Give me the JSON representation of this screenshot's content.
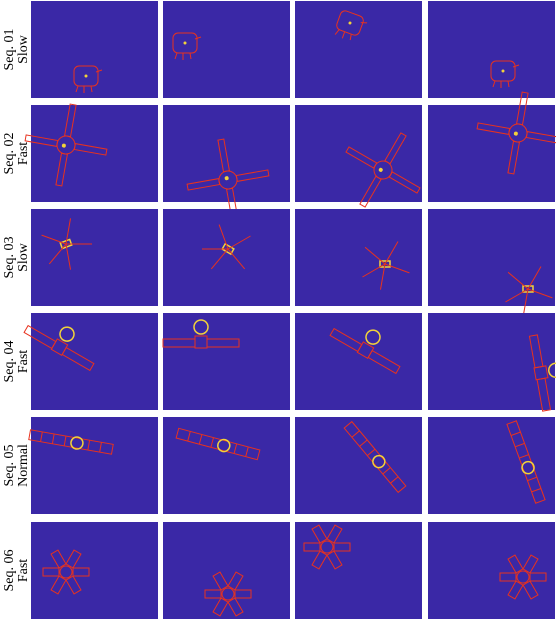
{
  "rows": [
    {
      "sequence": "Seq. 01",
      "speed": "Slow"
    },
    {
      "sequence": "Seq. 02",
      "speed": "Fast"
    },
    {
      "sequence": "Seq. 03",
      "speed": "Slow"
    },
    {
      "sequence": "Seq. 04",
      "speed": "Fast"
    },
    {
      "sequence": "Seq. 05",
      "speed": "Normal"
    },
    {
      "sequence": "Seq. 06",
      "speed": "Fast"
    }
  ]
}
